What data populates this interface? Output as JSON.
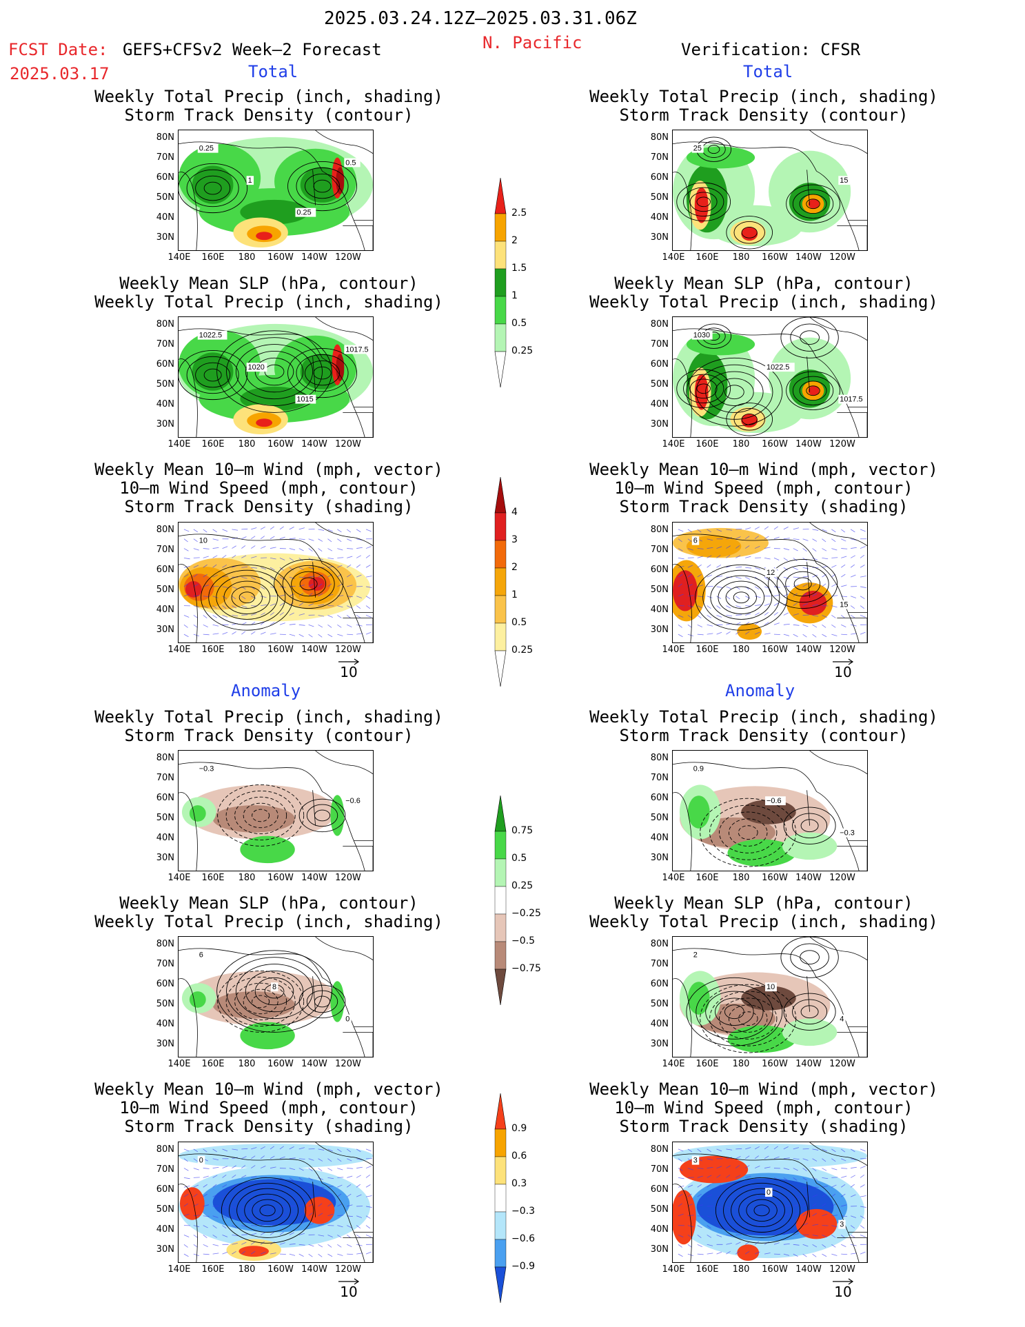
{
  "header": {
    "period": "2025.03.24.12Z–2025.03.31.06Z",
    "region": "N. Pacific",
    "fcst_label": "FCST Date:",
    "fcst_model": "GEFS+CFSv2 Week–2 Forecast",
    "fcst_date": "2025.03.17",
    "verification": "Verification: CFSR"
  },
  "sections": {
    "total": "Total",
    "anomaly": "Anomaly"
  },
  "titles": {
    "precip_storm": [
      "Weekly Total Precip (inch, shading)",
      "Storm Track Density (contour)"
    ],
    "slp_precip": [
      "Weekly Mean SLP (hPa, contour)",
      "Weekly Total Precip (inch, shading)"
    ],
    "wind_storm": [
      "Weekly Mean 10–m Wind (mph, vector)",
      "10–m Wind Speed (mph, contour)",
      "Storm Track Density (shading)"
    ]
  },
  "axes": {
    "lat_labels": [
      "80N",
      "70N",
      "60N",
      "50N",
      "40N",
      "30N"
    ],
    "lon_labels": [
      "140E",
      "160E",
      "180",
      "160W",
      "140W",
      "120W"
    ]
  },
  "vector_reference": "10",
  "colorbars": {
    "precip_total": {
      "labels": [
        "2.5",
        "2",
        "1.5",
        "1",
        "0.5",
        "0.25"
      ],
      "colors": [
        "#e8211a",
        "#f7a400",
        "#fde27a",
        "#1f9e1f",
        "#48d848",
        "#b4f5b4",
        "#ffffff"
      ]
    },
    "storm_total": {
      "labels": [
        "4",
        "3",
        "2",
        "1",
        "0.5",
        "0.25"
      ],
      "colors": [
        "#a50d0d",
        "#e02020",
        "#f26a0a",
        "#f5a60a",
        "#fac34a",
        "#fdf0a0",
        "#ffffff"
      ]
    },
    "precip_anom": {
      "labels": [
        "0.75",
        "0.5",
        "0.25",
        "−0.25",
        "−0.5",
        "−0.75"
      ],
      "colors": [
        "#1f9e1f",
        "#48d848",
        "#b4f5b4",
        "#ffffff",
        "#e6c6b8",
        "#b88a78",
        "#6e4a3e"
      ]
    },
    "storm_anom": {
      "labels": [
        "0.9",
        "0.6",
        "0.3",
        "−0.3",
        "−0.6",
        "−0.9"
      ],
      "colors": [
        "#f5401a",
        "#f7a400",
        "#fde27a",
        "#ffffff",
        "#b4e6fa",
        "#4aa0f0",
        "#1a50d8"
      ]
    }
  },
  "panels": {
    "L1": {
      "labels": [
        "0.25",
        "1",
        "0.25",
        "0.5"
      ]
    },
    "R1": {
      "labels": [
        "25",
        "15"
      ]
    },
    "L2": {
      "labels": [
        "1022.5",
        "1020",
        "1015",
        "1017.5"
      ]
    },
    "R2": {
      "labels": [
        "1030",
        "1022.5",
        "1017.5"
      ]
    },
    "L3": {
      "labels": [
        "10"
      ]
    },
    "R3": {
      "labels": [
        "6",
        "12",
        "15"
      ]
    },
    "L4": {
      "labels": [
        "−0.3",
        "−0.6"
      ]
    },
    "R4": {
      "labels": [
        "0.9",
        "−0.6",
        "−0.3"
      ]
    },
    "L5": {
      "labels": [
        "6",
        "8",
        "0"
      ]
    },
    "R5": {
      "labels": [
        "2",
        "10",
        "4"
      ]
    },
    "L6": {
      "labels": [
        "0"
      ]
    },
    "R6": {
      "labels": [
        "3",
        "0",
        "3"
      ]
    }
  }
}
